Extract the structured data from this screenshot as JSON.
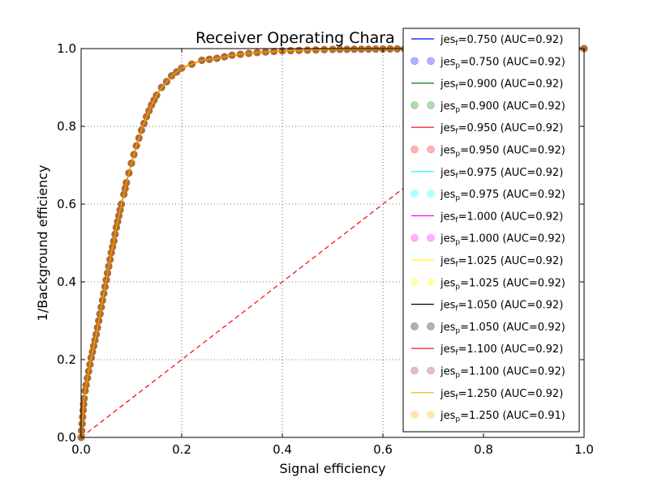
{
  "chart_data": {
    "type": "line",
    "title": "Receiver Operating Chara",
    "xlabel": "Signal efficiency",
    "ylabel": "1/Background efficiency",
    "xlim": [
      0.0,
      1.0
    ],
    "ylim": [
      0.0,
      1.0
    ],
    "xticks": [
      "0.0",
      "0.2",
      "0.4",
      "0.6",
      "0.8",
      "1.0"
    ],
    "yticks": [
      "0.0",
      "0.2",
      "0.4",
      "0.6",
      "0.8",
      "1.0"
    ],
    "grid": true,
    "legend_position": "right",
    "curve": {
      "x": [
        0.0,
        0.002,
        0.004,
        0.006,
        0.008,
        0.01,
        0.015,
        0.02,
        0.025,
        0.03,
        0.035,
        0.04,
        0.045,
        0.05,
        0.055,
        0.06,
        0.065,
        0.07,
        0.075,
        0.08,
        0.085,
        0.09,
        0.095,
        0.1,
        0.11,
        0.12,
        0.13,
        0.14,
        0.15,
        0.16,
        0.18,
        0.2,
        0.22,
        0.24,
        0.27,
        0.3,
        0.35,
        0.4,
        0.45,
        0.5,
        0.6,
        0.7,
        0.8,
        0.9,
        1.0
      ],
      "y": [
        0.0,
        0.035,
        0.07,
        0.1,
        0.12,
        0.135,
        0.17,
        0.205,
        0.235,
        0.265,
        0.3,
        0.335,
        0.37,
        0.405,
        0.44,
        0.475,
        0.505,
        0.54,
        0.57,
        0.6,
        0.625,
        0.655,
        0.68,
        0.705,
        0.75,
        0.79,
        0.825,
        0.855,
        0.88,
        0.9,
        0.93,
        0.95,
        0.96,
        0.97,
        0.975,
        0.983,
        0.99,
        0.994,
        0.996,
        0.998,
        0.999,
        1.0,
        1.0,
        1.0,
        1.0
      ]
    },
    "series": [
      {
        "name": "jes_f=0.750 (AUC=0.92)",
        "label_base": "jes",
        "label_sub": "f",
        "label_rest": "=0.750 (AUC=0.92)",
        "style": "line",
        "color": "#0000ff"
      },
      {
        "name": "jes_p=0.750 (AUC=0.92)",
        "label_base": "jes",
        "label_sub": "p",
        "label_rest": "=0.750 (AUC=0.92)",
        "style": "marker",
        "color": "#0000ff"
      },
      {
        "name": "jes_f=0.900 (AUC=0.92)",
        "label_base": "jes",
        "label_sub": "f",
        "label_rest": "=0.900 (AUC=0.92)",
        "style": "line",
        "color": "#008000"
      },
      {
        "name": "jes_p=0.900 (AUC=0.92)",
        "label_base": "jes",
        "label_sub": "p",
        "label_rest": "=0.900 (AUC=0.92)",
        "style": "marker",
        "color": "#008000"
      },
      {
        "name": "jes_f=0.950 (AUC=0.92)",
        "label_base": "jes",
        "label_sub": "f",
        "label_rest": "=0.950 (AUC=0.92)",
        "style": "line",
        "color": "#ff0000"
      },
      {
        "name": "jes_p=0.950 (AUC=0.92)",
        "label_base": "jes",
        "label_sub": "p",
        "label_rest": "=0.950 (AUC=0.92)",
        "style": "marker",
        "color": "#ff0000"
      },
      {
        "name": "jes_f=0.975 (AUC=0.92)",
        "label_base": "jes",
        "label_sub": "f",
        "label_rest": "=0.975 (AUC=0.92)",
        "style": "line",
        "color": "#00ffff"
      },
      {
        "name": "jes_p=0.975 (AUC=0.92)",
        "label_base": "jes",
        "label_sub": "p",
        "label_rest": "=0.975 (AUC=0.92)",
        "style": "marker",
        "color": "#00ffff"
      },
      {
        "name": "jes_f=1.000 (AUC=0.92)",
        "label_base": "jes",
        "label_sub": "f",
        "label_rest": "=1.000 (AUC=0.92)",
        "style": "line",
        "color": "#ff00ff"
      },
      {
        "name": "jes_p=1.000 (AUC=0.92)",
        "label_base": "jes",
        "label_sub": "p",
        "label_rest": "=1.000 (AUC=0.92)",
        "style": "marker",
        "color": "#ff00ff"
      },
      {
        "name": "jes_f=1.025 (AUC=0.92)",
        "label_base": "jes",
        "label_sub": "f",
        "label_rest": "=1.025 (AUC=0.92)",
        "style": "line",
        "color": "#ffff00"
      },
      {
        "name": "jes_p=1.025 (AUC=0.92)",
        "label_base": "jes",
        "label_sub": "p",
        "label_rest": "=1.025 (AUC=0.92)",
        "style": "marker",
        "color": "#ffff00"
      },
      {
        "name": "jes_f=1.050 (AUC=0.92)",
        "label_base": "jes",
        "label_sub": "f",
        "label_rest": "=1.050 (AUC=0.92)",
        "style": "line",
        "color": "#000000"
      },
      {
        "name": "jes_p=1.050 (AUC=0.92)",
        "label_base": "jes",
        "label_sub": "p",
        "label_rest": "=1.050 (AUC=0.92)",
        "style": "marker",
        "color": "#000000"
      },
      {
        "name": "jes_f=1.100 (AUC=0.92)",
        "label_base": "jes",
        "label_sub": "f",
        "label_rest": "=1.100 (AUC=0.92)",
        "style": "line",
        "color": "#ff0000"
      },
      {
        "name": "jes_p=1.100 (AUC=0.92)",
        "label_base": "jes",
        "label_sub": "p",
        "label_rest": "=1.100 (AUC=0.92)",
        "style": "marker",
        "color": "#a52a2a"
      },
      {
        "name": "jes_f=1.250 (AUC=0.92)",
        "label_base": "jes",
        "label_sub": "f",
        "label_rest": "=1.250 (AUC=0.92)",
        "style": "line",
        "color": "#ffa500"
      },
      {
        "name": "jes_p=1.250 (AUC=0.91)",
        "label_base": "jes",
        "label_sub": "p",
        "label_rest": "=1.250 (AUC=0.91)",
        "style": "marker",
        "color": "#ffa500"
      }
    ],
    "diagonal": {
      "x": [
        0.0,
        1.0
      ],
      "y": [
        0.0,
        1.0
      ],
      "color": "#ff0000",
      "style": "dashed"
    }
  }
}
